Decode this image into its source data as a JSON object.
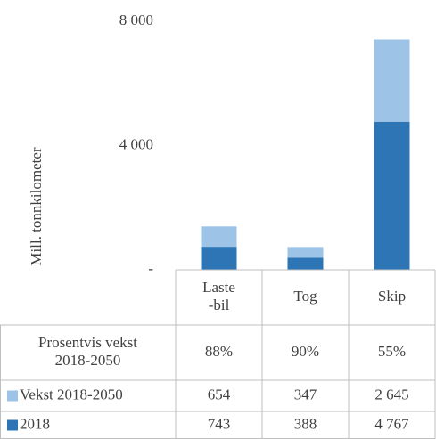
{
  "chart_data": {
    "type": "stacked_bar",
    "y_label": "Mill. tonnkilometer",
    "categories": [
      "Laste\n-bil",
      "Tog",
      "Skip"
    ],
    "ylim": [
      0,
      8000
    ],
    "yticks": [
      {
        "value": 0,
        "label": "-"
      },
      {
        "value": 4000,
        "label": "4 000"
      },
      {
        "value": 8000,
        "label": "8 000"
      }
    ],
    "series": [
      {
        "name": "Vekst 2018-2050",
        "color": "#9dc3e6",
        "values": [
          654,
          347,
          2645
        ],
        "value_labels": [
          "654",
          "347",
          "2 645"
        ]
      },
      {
        "name": "2018",
        "color": "#2e75b6",
        "values": [
          743,
          388,
          4767
        ],
        "value_labels": [
          "743",
          "388",
          "4 767"
        ]
      }
    ],
    "growth_row": {
      "name": "Prosentvis vekst\n2018-2050",
      "values": [
        88,
        90,
        55
      ],
      "value_labels": [
        "88%",
        "90%",
        "55%"
      ]
    }
  }
}
